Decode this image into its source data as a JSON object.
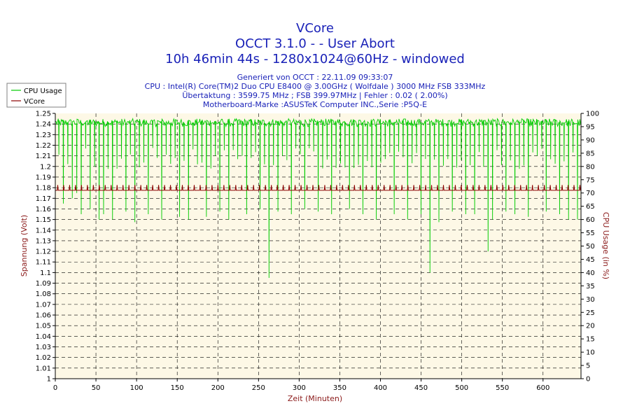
{
  "chart_data": {
    "type": "line",
    "title_lines": [
      "VCore",
      "OCCT 3.1.0 -  - User Abort",
      "10h 46min 44s - 1280x1024@60Hz - windowed"
    ],
    "info_lines": [
      "Generiert von OCCT : 22.11.09 09:33:07",
      "CPU : Intel(R) Core(TM)2 Duo CPU E8400 @ 3.00GHz ( Wolfdale ) 3000 MHz FSB 333MHz",
      "Übertaktung : 3599.75 MHz ; FSB 399.97MHz | Fehler : 0.02 ( 2.00%)",
      "Motherboard-Marke :ASUSTeK Computer INC.,Serie :P5Q-E"
    ],
    "xlabel": "Zeit (Minuten)",
    "ylabel_left": "Spannung (Volt)",
    "ylabel_right": "CPU Usage (in %)",
    "xlim": [
      0,
      646.7
    ],
    "ylim_left": [
      1.0,
      1.25
    ],
    "ylim_right": [
      0,
      100
    ],
    "x_ticks": [
      "0",
      "50",
      "100",
      "150",
      "200",
      "250",
      "300",
      "350",
      "400",
      "450",
      "500",
      "550",
      "600"
    ],
    "y_left_ticks": [
      "1",
      "1.01",
      "1.02",
      "1.03",
      "1.04",
      "1.05",
      "1.06",
      "1.07",
      "1.08",
      "1.09",
      "1.1",
      "1.11",
      "1.12",
      "1.13",
      "1.14",
      "1.15",
      "1.16",
      "1.17",
      "1.18",
      "1.19",
      "1.2",
      "1.21",
      "1.22",
      "1.23",
      "1.24",
      "1.25"
    ],
    "y_right_ticks": [
      "0",
      "5",
      "10",
      "15",
      "20",
      "25",
      "30",
      "35",
      "40",
      "45",
      "50",
      "55",
      "60",
      "65",
      "70",
      "75",
      "80",
      "85",
      "90",
      "95",
      "100"
    ],
    "grid": true,
    "legend_position": "top-left",
    "series": [
      {
        "name": "CPU Usage",
        "axis": "right",
        "color": "#00cc00",
        "baseline_percent": 97,
        "dip_period_min": 5.5,
        "typical_dip_percent": 82,
        "deep_dips": [
          {
            "x": 4,
            "y": 75
          },
          {
            "x": 8,
            "y": 66
          },
          {
            "x": 14,
            "y": 68
          },
          {
            "x": 22,
            "y": 70
          },
          {
            "x": 27,
            "y": 62
          },
          {
            "x": 38,
            "y": 64
          },
          {
            "x": 48,
            "y": 60
          },
          {
            "x": 56,
            "y": 62
          },
          {
            "x": 67,
            "y": 60
          },
          {
            "x": 80,
            "y": 63
          },
          {
            "x": 96,
            "y": 59
          },
          {
            "x": 108,
            "y": 62
          },
          {
            "x": 125,
            "y": 60
          },
          {
            "x": 150,
            "y": 61
          },
          {
            "x": 158,
            "y": 60
          },
          {
            "x": 180,
            "y": 61
          },
          {
            "x": 198,
            "y": 63
          },
          {
            "x": 210,
            "y": 60
          },
          {
            "x": 230,
            "y": 62
          },
          {
            "x": 245,
            "y": 64
          },
          {
            "x": 257,
            "y": 52
          },
          {
            "x": 258,
            "y": 38
          },
          {
            "x": 270,
            "y": 63
          },
          {
            "x": 286,
            "y": 62
          },
          {
            "x": 300,
            "y": 64
          },
          {
            "x": 318,
            "y": 63
          },
          {
            "x": 338,
            "y": 62
          },
          {
            "x": 358,
            "y": 64
          },
          {
            "x": 376,
            "y": 62
          },
          {
            "x": 390,
            "y": 60
          },
          {
            "x": 410,
            "y": 62
          },
          {
            "x": 430,
            "y": 60
          },
          {
            "x": 446,
            "y": 62
          },
          {
            "x": 456,
            "y": 56
          },
          {
            "x": 457,
            "y": 40
          },
          {
            "x": 468,
            "y": 59
          },
          {
            "x": 482,
            "y": 63
          },
          {
            "x": 500,
            "y": 62
          },
          {
            "x": 512,
            "y": 62
          },
          {
            "x": 527,
            "y": 55
          },
          {
            "x": 529,
            "y": 48
          },
          {
            "x": 532,
            "y": 60
          },
          {
            "x": 548,
            "y": 63
          },
          {
            "x": 560,
            "y": 62
          },
          {
            "x": 580,
            "y": 61
          },
          {
            "x": 600,
            "y": 63
          },
          {
            "x": 616,
            "y": 62
          },
          {
            "x": 626,
            "y": 60
          },
          {
            "x": 640,
            "y": 60
          }
        ]
      },
      {
        "name": "VCore",
        "axis": "left",
        "color": "#8b0000",
        "baseline_volt": 1.1775,
        "spike_volt": 1.1825,
        "spike_period_min": 7.3
      }
    ]
  }
}
